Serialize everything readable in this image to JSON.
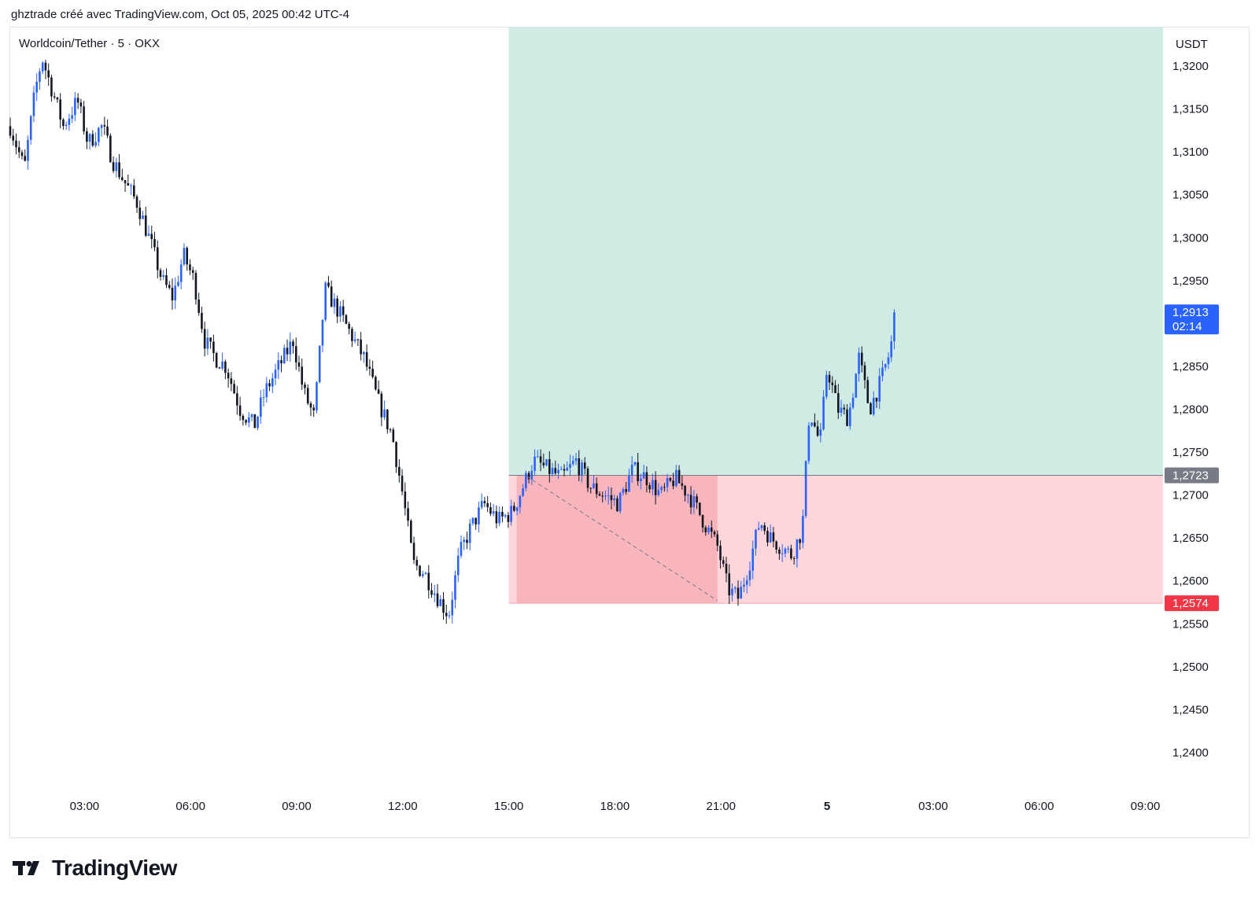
{
  "header": {
    "text": "ghztrade créé avec TradingView.com, Oct 05, 2025 00:42 UTC-4"
  },
  "footer": {
    "brand": "TradingView"
  },
  "colors": {
    "up": "#2962ff",
    "down": "#131722",
    "profit_zone": "#d0ebe4",
    "loss_zone": "#fcd6da",
    "loss_zone_dark": "#f8b5bb",
    "last_price_bg": "#2962ff",
    "entry_bg": "#787b86",
    "stop_bg": "#f23645"
  },
  "chart_data": {
    "type": "candlestick",
    "symbol_label": "Worldcoin/Tether · 5 · OKX",
    "currency": "USDT",
    "ylim": [
      1.2355,
      1.3245
    ],
    "y_ticks": [
      "1,3200",
      "1,3150",
      "1,3100",
      "1,3050",
      "1,3000",
      "1,2950",
      "1,2850",
      "1,2800",
      "1,2750",
      "1,2700",
      "1,2650",
      "1,2600",
      "1,2550",
      "1,2500",
      "1,2450",
      "1,2400"
    ],
    "y_tick_values": [
      1.32,
      1.315,
      1.31,
      1.305,
      1.3,
      1.295,
      1.285,
      1.28,
      1.275,
      1.27,
      1.265,
      1.26,
      1.255,
      1.25,
      1.245,
      1.24
    ],
    "x_ticks": [
      {
        "label": "03:00",
        "hours": 2.1,
        "bold": false
      },
      {
        "label": "06:00",
        "hours": 5.1,
        "bold": false
      },
      {
        "label": "09:00",
        "hours": 8.1,
        "bold": false
      },
      {
        "label": "12:00",
        "hours": 11.1,
        "bold": false
      },
      {
        "label": "15:00",
        "hours": 14.1,
        "bold": false
      },
      {
        "label": "18:00",
        "hours": 17.1,
        "bold": false
      },
      {
        "label": "21:00",
        "hours": 20.1,
        "bold": false
      },
      {
        "label": "5",
        "hours": 23.1,
        "bold": true
      },
      {
        "label": "03:00",
        "hours": 26.1,
        "bold": false
      },
      {
        "label": "06:00",
        "hours": 29.1,
        "bold": false
      },
      {
        "label": "09:00",
        "hours": 32.1,
        "bold": false
      }
    ],
    "x_range_hours": [
      0,
      32.6
    ],
    "price_path": [
      [
        0.0,
        1.313
      ],
      [
        0.4,
        1.308
      ],
      [
        0.7,
        1.317
      ],
      [
        0.9,
        1.321
      ],
      [
        1.2,
        1.317
      ],
      [
        1.5,
        1.313
      ],
      [
        1.9,
        1.316
      ],
      [
        2.2,
        1.311
      ],
      [
        2.6,
        1.313
      ],
      [
        2.9,
        1.309
      ],
      [
        3.3,
        1.306
      ],
      [
        3.6,
        1.304
      ],
      [
        4.0,
        1.299
      ],
      [
        4.3,
        1.295
      ],
      [
        4.6,
        1.293
      ],
      [
        4.9,
        1.298
      ],
      [
        5.2,
        1.295
      ],
      [
        5.5,
        1.288
      ],
      [
        5.8,
        1.286
      ],
      [
        6.1,
        1.285
      ],
      [
        6.5,
        1.28
      ],
      [
        6.9,
        1.278
      ],
      [
        7.2,
        1.282
      ],
      [
        7.6,
        1.285
      ],
      [
        8.0,
        1.288
      ],
      [
        8.3,
        1.282
      ],
      [
        8.6,
        1.279
      ],
      [
        8.9,
        1.294
      ],
      [
        9.2,
        1.292
      ],
      [
        9.6,
        1.289
      ],
      [
        10.0,
        1.286
      ],
      [
        10.4,
        1.281
      ],
      [
        10.8,
        1.277
      ],
      [
        11.1,
        1.27
      ],
      [
        11.4,
        1.262
      ],
      [
        11.7,
        1.261
      ],
      [
        12.1,
        1.258
      ],
      [
        12.4,
        1.256
      ],
      [
        12.7,
        1.263
      ],
      [
        13.0,
        1.266
      ],
      [
        13.4,
        1.269
      ],
      [
        13.8,
        1.267
      ],
      [
        14.2,
        1.268
      ],
      [
        14.5,
        1.271
      ],
      [
        14.8,
        1.274
      ],
      [
        15.2,
        1.273
      ],
      [
        15.6,
        1.272
      ],
      [
        16.0,
        1.274
      ],
      [
        16.4,
        1.271
      ],
      [
        16.8,
        1.27
      ],
      [
        17.2,
        1.269
      ],
      [
        17.6,
        1.273
      ],
      [
        18.0,
        1.272
      ],
      [
        18.4,
        1.27
      ],
      [
        18.8,
        1.272
      ],
      [
        19.2,
        1.27
      ],
      [
        19.6,
        1.267
      ],
      [
        20.0,
        1.264
      ],
      [
        20.3,
        1.259
      ],
      [
        20.6,
        1.258
      ],
      [
        20.9,
        1.262
      ],
      [
        21.2,
        1.267
      ],
      [
        21.5,
        1.265
      ],
      [
        21.8,
        1.264
      ],
      [
        22.1,
        1.263
      ],
      [
        22.4,
        1.266
      ],
      [
        22.6,
        1.28
      ],
      [
        22.9,
        1.276
      ],
      [
        23.1,
        1.285
      ],
      [
        23.4,
        1.28
      ],
      [
        23.7,
        1.279
      ],
      [
        24.0,
        1.286
      ],
      [
        24.3,
        1.28
      ],
      [
        24.6,
        1.283
      ],
      [
        24.9,
        1.287
      ],
      [
        25.0,
        1.2913
      ]
    ],
    "position": {
      "start_hours": 14.1,
      "end_hours": 32.6,
      "target": 1.3245,
      "entry": 1.2723,
      "stop": 1.2574,
      "loss_dark_end_hours": 20.0
    },
    "trend_line": {
      "from": [
        14.6,
        1.2722
      ],
      "to": [
        20.0,
        1.2577
      ]
    },
    "last_price": {
      "label": "1,2913",
      "value": 1.2913,
      "countdown": "02:14"
    },
    "entry_label": "1,2723",
    "stop_label": "1,2574"
  }
}
